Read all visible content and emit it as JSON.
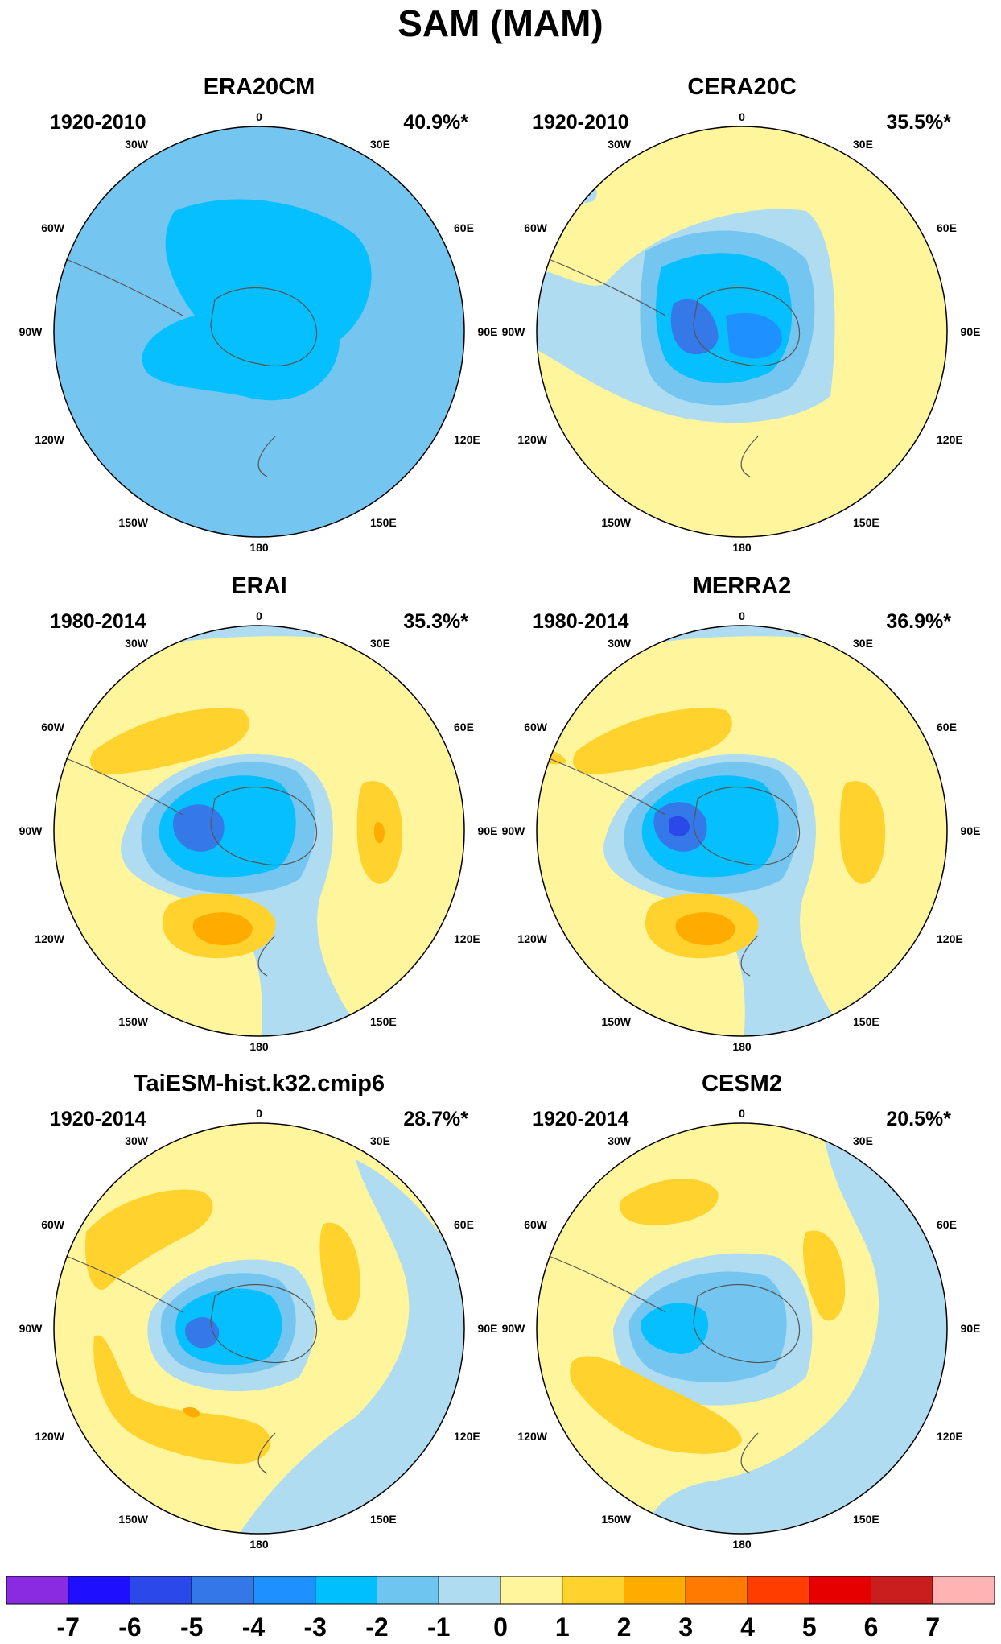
{
  "title": "SAM (MAM)",
  "lon_labels": [
    "0",
    "30E",
    "60E",
    "90E",
    "120E",
    "150E",
    "180",
    "150W",
    "120W",
    "90W",
    "60W",
    "30W"
  ],
  "panels": [
    {
      "title": "ERA20CM",
      "period": "1920-2010",
      "variance": "40.9%*"
    },
    {
      "title": "CERA20C",
      "period": "1920-2010",
      "variance": "35.5%*"
    },
    {
      "title": "ERAI",
      "period": "1980-2014",
      "variance": "35.3%*"
    },
    {
      "title": "MERRA2",
      "period": "1980-2014",
      "variance": "36.9%*"
    },
    {
      "title": "TaiESM-hist.k32.cmip6",
      "period": "1920-2014",
      "variance": "28.7%*"
    },
    {
      "title": "CESM2",
      "period": "1920-2014",
      "variance": "20.5%*"
    }
  ],
  "colorbar": {
    "labels": [
      "-7",
      "-6",
      "-5",
      "-4",
      "-3",
      "-2",
      "-1",
      "0",
      "1",
      "2",
      "3",
      "4",
      "5",
      "6",
      "7"
    ],
    "colors": [
      "#8a2be2",
      "#1e10ff",
      "#2b48e8",
      "#3478e8",
      "#1e90ff",
      "#00bfff",
      "#6ec6f0",
      "#b0dcf2",
      "#fff59d",
      "#ffd22e",
      "#ffab00",
      "#ff7a00",
      "#ff3d00",
      "#e60000",
      "#c81e1e",
      "#ffb3b3"
    ]
  }
}
